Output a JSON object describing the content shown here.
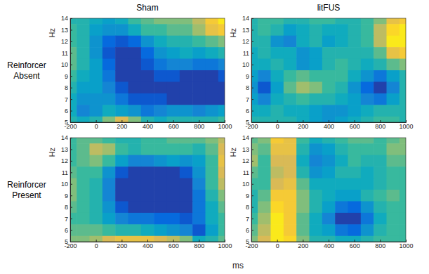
{
  "chart_data": {
    "type": "heatmap",
    "columns": [
      "Sham",
      "litFUS"
    ],
    "rows": [
      "Reinforcer Absent",
      "Reinforcer Present"
    ],
    "x_label": "ms",
    "y_label": "Hz",
    "x": [
      -200,
      -100,
      0,
      100,
      200,
      300,
      400,
      500,
      600,
      700,
      800,
      900,
      1000
    ],
    "y": [
      14,
      13,
      12,
      11,
      10,
      9,
      8,
      7,
      6,
      5
    ],
    "xlim": [
      -200,
      1000
    ],
    "ylim": [
      5,
      14
    ],
    "xticks": [
      -200,
      0,
      200,
      400,
      600,
      800,
      1000
    ],
    "yticks": [
      5,
      6,
      7,
      8,
      9,
      10,
      11,
      12,
      13,
      14
    ],
    "zlim": [
      0,
      1
    ],
    "panels": [
      {
        "z": [
          [
            0.45,
            0.45,
            0.4,
            0.35,
            0.4,
            0.5,
            0.55,
            0.6,
            0.6,
            0.6,
            0.7,
            0.85,
            0.95
          ],
          [
            0.5,
            0.45,
            0.35,
            0.3,
            0.3,
            0.4,
            0.5,
            0.5,
            0.55,
            0.55,
            0.65,
            0.8,
            0.85
          ],
          [
            0.5,
            0.45,
            0.3,
            0.15,
            0.1,
            0.15,
            0.3,
            0.4,
            0.45,
            0.45,
            0.5,
            0.55,
            0.6
          ],
          [
            0.55,
            0.45,
            0.3,
            0.1,
            0.05,
            0.05,
            0.15,
            0.3,
            0.35,
            0.4,
            0.35,
            0.4,
            0.45
          ],
          [
            0.55,
            0.45,
            0.35,
            0.15,
            0.05,
            0.05,
            0.1,
            0.2,
            0.25,
            0.25,
            0.2,
            0.2,
            0.25
          ],
          [
            0.5,
            0.4,
            0.35,
            0.2,
            0.05,
            0.05,
            0.05,
            0.1,
            0.1,
            0.05,
            0.05,
            0.05,
            0.1
          ],
          [
            0.45,
            0.35,
            0.35,
            0.25,
            0.1,
            0.05,
            0.05,
            0.05,
            0.05,
            0.05,
            0.05,
            0.05,
            0.05
          ],
          [
            0.4,
            0.3,
            0.3,
            0.3,
            0.2,
            0.1,
            0.1,
            0.1,
            0.05,
            0.05,
            0.05,
            0.05,
            0.05
          ],
          [
            0.4,
            0.25,
            0.3,
            0.4,
            0.35,
            0.3,
            0.2,
            0.25,
            0.3,
            0.3,
            0.25,
            0.3,
            0.35
          ],
          [
            0.45,
            0.4,
            0.45,
            0.6,
            0.75,
            0.6,
            0.45,
            0.4,
            0.45,
            0.45,
            0.45,
            0.45,
            0.5
          ]
        ]
      },
      {
        "z": [
          [
            0.45,
            0.5,
            0.5,
            0.45,
            0.45,
            0.5,
            0.5,
            0.45,
            0.45,
            0.5,
            0.6,
            0.8,
            0.85
          ],
          [
            0.45,
            0.5,
            0.45,
            0.35,
            0.4,
            0.45,
            0.4,
            0.4,
            0.45,
            0.5,
            0.7,
            0.9,
            0.95
          ],
          [
            0.45,
            0.45,
            0.3,
            0.25,
            0.4,
            0.45,
            0.35,
            0.4,
            0.45,
            0.5,
            0.7,
            0.95,
            0.95
          ],
          [
            0.4,
            0.45,
            0.4,
            0.4,
            0.3,
            0.35,
            0.45,
            0.45,
            0.45,
            0.45,
            0.55,
            0.8,
            0.85
          ],
          [
            0.4,
            0.4,
            0.45,
            0.4,
            0.3,
            0.35,
            0.45,
            0.5,
            0.45,
            0.4,
            0.45,
            0.55,
            0.6
          ],
          [
            0.35,
            0.25,
            0.4,
            0.5,
            0.55,
            0.5,
            0.5,
            0.5,
            0.4,
            0.3,
            0.2,
            0.35,
            0.45
          ],
          [
            0.3,
            0.1,
            0.35,
            0.55,
            0.65,
            0.6,
            0.5,
            0.45,
            0.3,
            0.15,
            0.05,
            0.25,
            0.45
          ],
          [
            0.35,
            0.25,
            0.4,
            0.45,
            0.5,
            0.45,
            0.45,
            0.4,
            0.35,
            0.25,
            0.2,
            0.35,
            0.45
          ],
          [
            0.4,
            0.4,
            0.45,
            0.4,
            0.4,
            0.35,
            0.3,
            0.3,
            0.35,
            0.4,
            0.45,
            0.45,
            0.45
          ],
          [
            0.45,
            0.45,
            0.45,
            0.45,
            0.4,
            0.35,
            0.3,
            0.35,
            0.4,
            0.45,
            0.5,
            0.5,
            0.45
          ]
        ]
      },
      {
        "z": [
          [
            0.5,
            0.55,
            0.55,
            0.5,
            0.45,
            0.45,
            0.5,
            0.5,
            0.55,
            0.55,
            0.55,
            0.6,
            0.7
          ],
          [
            0.5,
            0.55,
            0.7,
            0.65,
            0.5,
            0.45,
            0.5,
            0.5,
            0.5,
            0.5,
            0.45,
            0.55,
            0.75
          ],
          [
            0.5,
            0.55,
            0.6,
            0.5,
            0.35,
            0.25,
            0.25,
            0.3,
            0.35,
            0.3,
            0.35,
            0.5,
            0.8
          ],
          [
            0.55,
            0.5,
            0.5,
            0.3,
            0.1,
            0.05,
            0.05,
            0.05,
            0.05,
            0.1,
            0.3,
            0.5,
            0.75
          ],
          [
            0.6,
            0.5,
            0.45,
            0.25,
            0.05,
            0.05,
            0.05,
            0.05,
            0.05,
            0.05,
            0.25,
            0.5,
            0.7
          ],
          [
            0.6,
            0.5,
            0.45,
            0.25,
            0.05,
            0.05,
            0.05,
            0.05,
            0.05,
            0.05,
            0.2,
            0.45,
            0.6
          ],
          [
            0.55,
            0.5,
            0.45,
            0.3,
            0.1,
            0.05,
            0.05,
            0.05,
            0.05,
            0.05,
            0.2,
            0.4,
            0.55
          ],
          [
            0.5,
            0.5,
            0.45,
            0.35,
            0.25,
            0.2,
            0.2,
            0.15,
            0.15,
            0.1,
            0.2,
            0.4,
            0.5
          ],
          [
            0.55,
            0.55,
            0.55,
            0.5,
            0.45,
            0.45,
            0.4,
            0.35,
            0.3,
            0.25,
            0.1,
            0.35,
            0.5
          ],
          [
            0.6,
            0.6,
            0.65,
            0.75,
            0.8,
            0.8,
            0.8,
            0.75,
            0.7,
            0.6,
            0.4,
            0.45,
            0.55
          ]
        ]
      },
      {
        "z": [
          [
            0.55,
            0.6,
            0.85,
            0.8,
            0.5,
            0.4,
            0.45,
            0.5,
            0.55,
            0.55,
            0.5,
            0.55,
            0.6
          ],
          [
            0.6,
            0.55,
            0.8,
            0.8,
            0.45,
            0.3,
            0.35,
            0.45,
            0.5,
            0.5,
            0.5,
            0.6,
            0.6
          ],
          [
            0.65,
            0.5,
            0.75,
            0.75,
            0.4,
            0.25,
            0.3,
            0.4,
            0.5,
            0.45,
            0.45,
            0.55,
            0.55
          ],
          [
            0.55,
            0.5,
            0.7,
            0.75,
            0.45,
            0.3,
            0.35,
            0.45,
            0.45,
            0.4,
            0.45,
            0.5,
            0.5
          ],
          [
            0.5,
            0.5,
            0.75,
            0.8,
            0.55,
            0.4,
            0.4,
            0.4,
            0.4,
            0.4,
            0.45,
            0.5,
            0.5
          ],
          [
            0.45,
            0.55,
            0.85,
            0.85,
            0.6,
            0.45,
            0.4,
            0.35,
            0.35,
            0.45,
            0.5,
            0.55,
            0.5
          ],
          [
            0.45,
            0.6,
            0.9,
            0.85,
            0.6,
            0.45,
            0.35,
            0.2,
            0.15,
            0.3,
            0.45,
            0.5,
            0.5
          ],
          [
            0.5,
            0.65,
            0.95,
            0.85,
            0.55,
            0.4,
            0.25,
            0.05,
            0.05,
            0.2,
            0.4,
            0.5,
            0.5
          ],
          [
            0.55,
            0.7,
            0.95,
            0.85,
            0.55,
            0.4,
            0.35,
            0.2,
            0.15,
            0.3,
            0.45,
            0.5,
            0.5
          ],
          [
            0.6,
            0.75,
            0.95,
            0.9,
            0.6,
            0.45,
            0.45,
            0.4,
            0.4,
            0.45,
            0.5,
            0.5,
            0.5
          ]
        ]
      }
    ]
  }
}
